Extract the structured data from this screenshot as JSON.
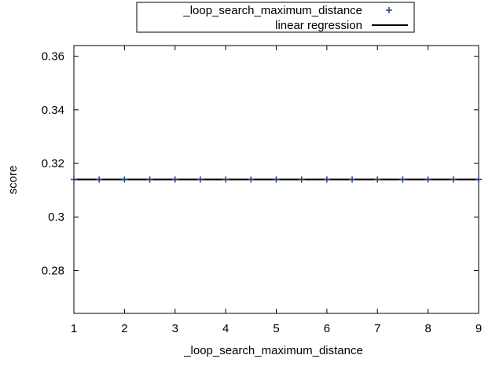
{
  "chart_data": {
    "type": "scatter",
    "title": "",
    "xlabel": "_loop_search_maximum_distance",
    "ylabel": "score",
    "xlim": [
      1,
      9
    ],
    "ylim": [
      0.264,
      0.364
    ],
    "xticks": [
      1,
      2,
      3,
      4,
      5,
      6,
      7,
      8,
      9
    ],
    "xtick_labels": [
      "1",
      "2",
      "3",
      "4",
      "5",
      "6",
      "7",
      "8",
      "9"
    ],
    "yticks": [
      0.28,
      0.3,
      0.32,
      0.34,
      0.36
    ],
    "ytick_labels": [
      "0.28",
      "0.3",
      "0.32",
      "0.34",
      "0.36"
    ],
    "grid": false,
    "legend_position": "top-center",
    "series": [
      {
        "name": "_loop_search_maximum_distance",
        "kind": "points",
        "marker": "plus",
        "color": "#1f3f8f",
        "x": [
          1,
          1.5,
          2,
          2.5,
          3,
          3.5,
          4,
          4.5,
          5,
          5.5,
          6,
          6.5,
          7,
          7.5,
          8,
          8.5,
          9
        ],
        "y": [
          0.314,
          0.314,
          0.314,
          0.314,
          0.314,
          0.314,
          0.314,
          0.314,
          0.314,
          0.314,
          0.314,
          0.314,
          0.314,
          0.314,
          0.314,
          0.314,
          0.314
        ]
      },
      {
        "name": "linear regression",
        "kind": "line",
        "color": "#000000",
        "x": [
          1,
          9
        ],
        "y": [
          0.314,
          0.314
        ]
      }
    ]
  }
}
